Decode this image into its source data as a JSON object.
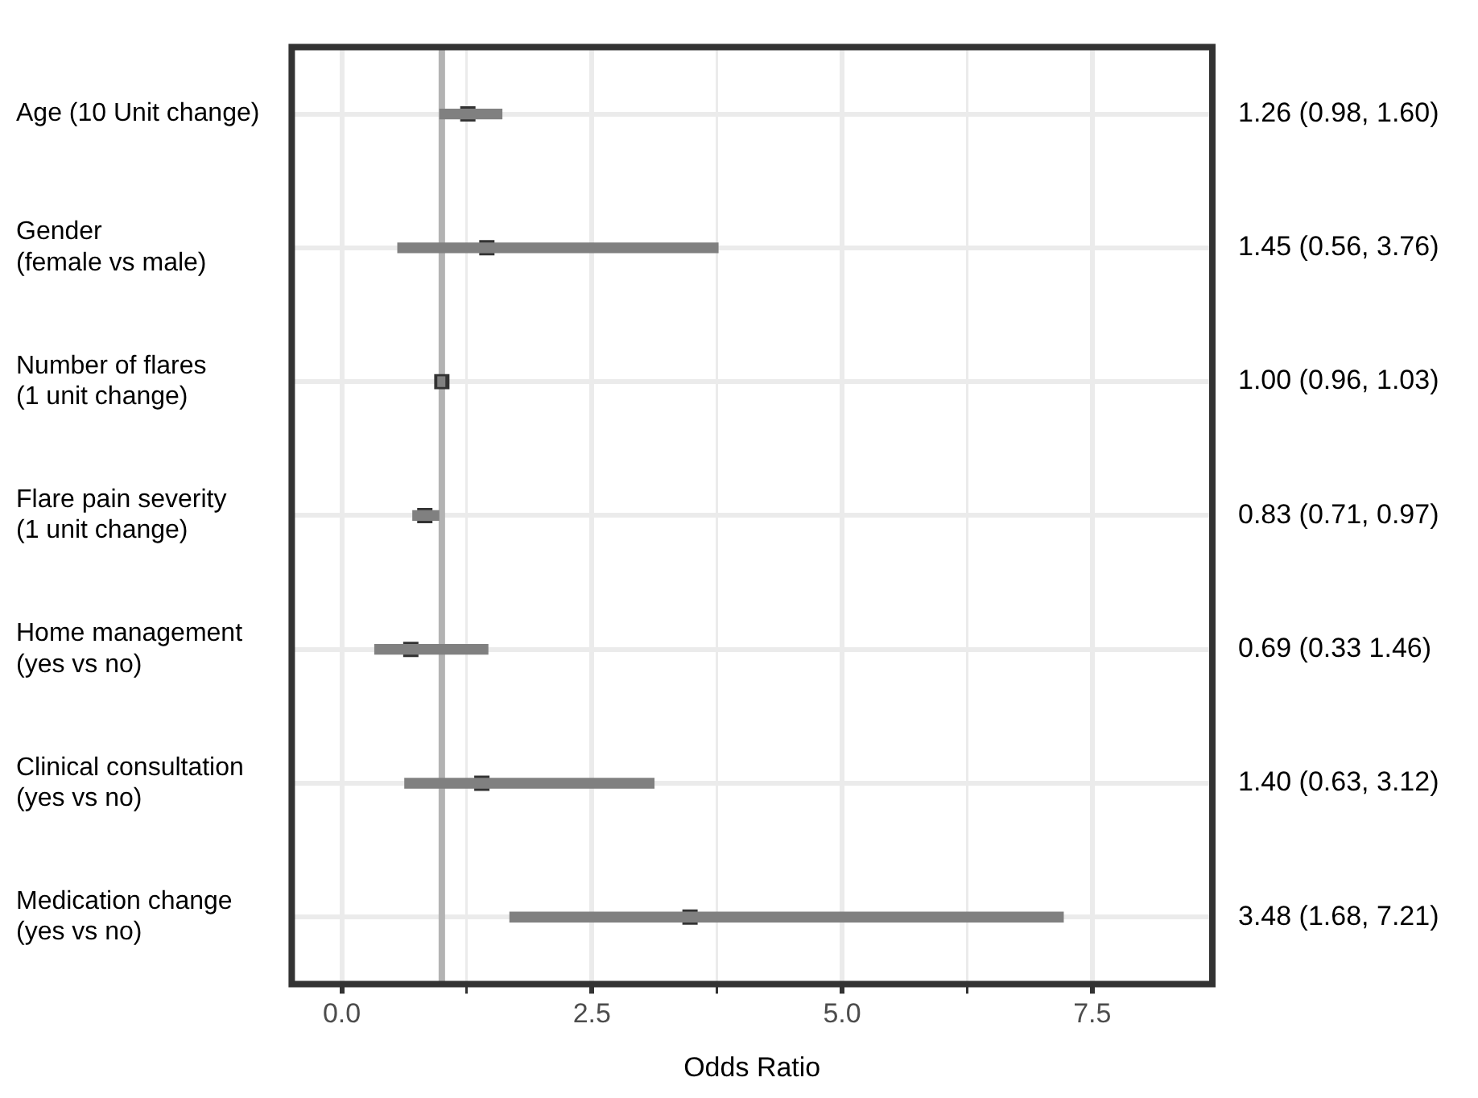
{
  "chart_data": {
    "type": "scatter",
    "orientation": "horizontal",
    "xlabel": "Odds Ratio",
    "categories": [
      "Age (10 Unit change)",
      "Gender\n(female vs male)",
      "Number of flares\n(1 unit change)",
      "Flare pain severity\n(1 unit change)",
      "Home management\n(yes vs no)",
      "Clinical consultation\n(yes vs no)",
      "Medication change\n(yes vs no)"
    ],
    "series": [
      {
        "type": "bar",
        "color": "#808080",
        "base": [
          0.98,
          0.56,
          0.96,
          0.71,
          0.33,
          0.63,
          1.68
        ],
        "values": [
          0.62,
          3.2,
          0.07,
          0.26,
          1.13,
          2.49,
          5.53
        ]
      },
      {
        "color": "#333333",
        "values": [
          1.26,
          1.45,
          1.0,
          0.83,
          0.69,
          1.4,
          3.48
        ],
        "value_labels": [
          "1.26 (0.98, 1.60)",
          "1.45 (0.56, 3.76)",
          "1.00 (0.96, 1.03)",
          "0.83 (0.71, 0.97)",
          "0.69 (0.33 1.46)",
          "1.40 (0.63, 3.12)",
          "3.48 (1.68, 7.21)"
        ]
      }
    ],
    "xlim": [
      -0.5,
      8.7
    ],
    "xticks": [
      {
        "value": 0,
        "label": "0.0"
      },
      {
        "value": 1.25,
        "label": null
      },
      {
        "value": 2.5,
        "label": "2.5"
      },
      {
        "value": 3.75,
        "label": null
      },
      {
        "value": 5,
        "label": "5.0"
      },
      {
        "value": 6.25,
        "label": null
      },
      {
        "value": 7.5,
        "label": "7.5"
      }
    ],
    "ref_lines": [
      {
        "axis": "x",
        "value": 1,
        "color": "#b3b3b3"
      }
    ],
    "grid": true,
    "marker": "square",
    "legend": false
  }
}
